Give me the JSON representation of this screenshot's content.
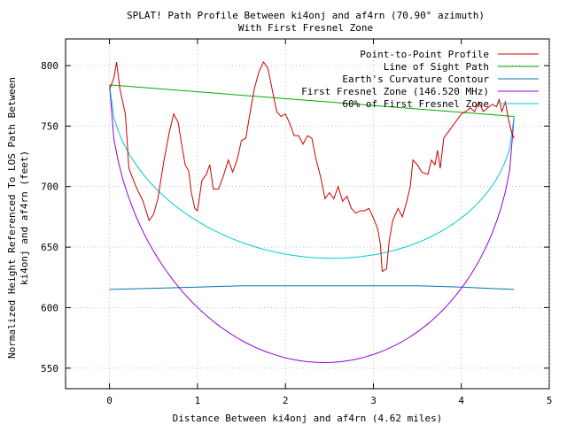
{
  "chart_data": {
    "type": "line",
    "title": "SPLAT! Path Profile Between ki4onj and af4rn (70.90° azimuth)",
    "subtitle": "With First Fresnel Zone",
    "xlabel": "Distance Between ki4onj and af4rn (4.62 miles)",
    "ylabel_lines": [
      "Normalized Height Referenced To LOS Path Between",
      "ki4onj and af4rn (feet)"
    ],
    "xlim": [
      -0.5,
      5
    ],
    "ylim": [
      533,
      822
    ],
    "x_ticks": [
      0,
      1,
      2,
      3,
      4,
      5
    ],
    "x_tick_labels": [
      "0",
      "1",
      "2",
      "3",
      "4",
      "5"
    ],
    "y_ticks": [
      550,
      600,
      650,
      700,
      750,
      800
    ],
    "y_tick_labels": [
      "550",
      "600",
      "650",
      "700",
      "750",
      "800"
    ],
    "legend_position": "top-right",
    "series": [
      {
        "name": "Point-to-Point Profile",
        "color": "#cc0000",
        "points": [
          [
            0,
            780
          ],
          [
            0.05,
            790
          ],
          [
            0.08,
            803
          ],
          [
            0.12,
            780
          ],
          [
            0.18,
            760
          ],
          [
            0.22,
            715
          ],
          [
            0.3,
            700
          ],
          [
            0.38,
            688
          ],
          [
            0.45,
            672
          ],
          [
            0.5,
            677
          ],
          [
            0.55,
            690
          ],
          [
            0.62,
            722
          ],
          [
            0.68,
            745
          ],
          [
            0.73,
            760
          ],
          [
            0.78,
            753
          ],
          [
            0.82,
            735
          ],
          [
            0.86,
            718
          ],
          [
            0.9,
            713
          ],
          [
            0.93,
            695
          ],
          [
            0.97,
            682
          ],
          [
            1.0,
            680
          ],
          [
            1.05,
            705
          ],
          [
            1.1,
            710
          ],
          [
            1.14,
            718
          ],
          [
            1.18,
            698
          ],
          [
            1.24,
            698
          ],
          [
            1.3,
            710
          ],
          [
            1.35,
            722
          ],
          [
            1.4,
            712
          ],
          [
            1.45,
            722
          ],
          [
            1.5,
            738
          ],
          [
            1.55,
            740
          ],
          [
            1.6,
            762
          ],
          [
            1.65,
            782
          ],
          [
            1.7,
            795
          ],
          [
            1.75,
            803
          ],
          [
            1.8,
            798
          ],
          [
            1.85,
            780
          ],
          [
            1.9,
            762
          ],
          [
            1.95,
            758
          ],
          [
            2.0,
            760
          ],
          [
            2.05,
            752
          ],
          [
            2.1,
            742
          ],
          [
            2.15,
            742
          ],
          [
            2.2,
            735
          ],
          [
            2.25,
            742
          ],
          [
            2.3,
            740
          ],
          [
            2.35,
            722
          ],
          [
            2.4,
            708
          ],
          [
            2.45,
            690
          ],
          [
            2.5,
            695
          ],
          [
            2.55,
            690
          ],
          [
            2.6,
            700
          ],
          [
            2.65,
            688
          ],
          [
            2.7,
            692
          ],
          [
            2.75,
            682
          ],
          [
            2.8,
            678
          ],
          [
            2.85,
            680
          ],
          [
            2.9,
            680
          ],
          [
            2.95,
            682
          ],
          [
            3.0,
            674
          ],
          [
            3.05,
            665
          ],
          [
            3.08,
            652
          ],
          [
            3.1,
            630
          ],
          [
            3.15,
            632
          ],
          [
            3.18,
            655
          ],
          [
            3.22,
            672
          ],
          [
            3.28,
            682
          ],
          [
            3.33,
            675
          ],
          [
            3.38,
            688
          ],
          [
            3.42,
            700
          ],
          [
            3.45,
            722
          ],
          [
            3.5,
            718
          ],
          [
            3.55,
            712
          ],
          [
            3.62,
            710
          ],
          [
            3.66,
            722
          ],
          [
            3.7,
            718
          ],
          [
            3.73,
            730
          ],
          [
            3.76,
            715
          ],
          [
            3.8,
            740
          ],
          [
            3.85,
            745
          ],
          [
            3.9,
            750
          ],
          [
            3.95,
            755
          ],
          [
            4.0,
            760
          ],
          [
            4.05,
            762
          ],
          [
            4.1,
            765
          ],
          [
            4.15,
            762
          ],
          [
            4.2,
            770
          ],
          [
            4.25,
            762
          ],
          [
            4.3,
            765
          ],
          [
            4.35,
            768
          ],
          [
            4.4,
            766
          ],
          [
            4.43,
            772
          ],
          [
            4.46,
            762
          ],
          [
            4.5,
            770
          ],
          [
            4.53,
            758
          ],
          [
            4.57,
            745
          ],
          [
            4.6,
            740
          ]
        ]
      },
      {
        "name": "Line of Sight Path",
        "color": "#00aa00",
        "points": [
          [
            0,
            784
          ],
          [
            4.6,
            758
          ]
        ]
      },
      {
        "name": "Earth's Curvature Contour",
        "color": "#0072b2",
        "points": [
          [
            0,
            615
          ],
          [
            0.5,
            616
          ],
          [
            1.0,
            617
          ],
          [
            1.5,
            618
          ],
          [
            2.0,
            618
          ],
          [
            2.5,
            618
          ],
          [
            3.0,
            618
          ],
          [
            3.5,
            618
          ],
          [
            4.0,
            617
          ],
          [
            4.3,
            616
          ],
          [
            4.6,
            615
          ]
        ]
      },
      {
        "name": "First Fresnel Zone (146.520 MHz)",
        "color": "#9400d3",
        "fresnel_factor": 1.0
      },
      {
        "name": "60% of First Fresnel Zone",
        "color": "#00cccc",
        "fresnel_factor": 0.6
      }
    ]
  }
}
